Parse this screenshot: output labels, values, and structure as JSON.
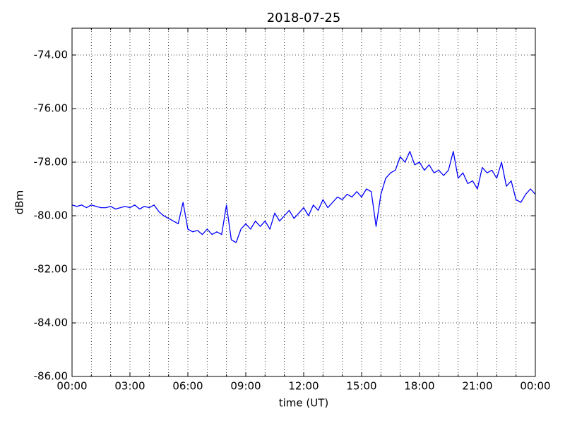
{
  "chart_data": {
    "type": "line",
    "title": "2018-07-25",
    "x_label": "time (UT)",
    "y_label": "dBm",
    "x": [
      0,
      0.25,
      0.5,
      0.75,
      1,
      1.25,
      1.5,
      1.75,
      2,
      2.25,
      2.5,
      2.75,
      3,
      3.25,
      3.5,
      3.75,
      4,
      4.25,
      4.5,
      4.75,
      5,
      5.25,
      5.5,
      5.75,
      6,
      6.25,
      6.5,
      6.75,
      7,
      7.25,
      7.5,
      7.75,
      8,
      8.25,
      8.5,
      8.75,
      9,
      9.25,
      9.5,
      9.75,
      10,
      10.25,
      10.5,
      10.75,
      11,
      11.25,
      11.5,
      11.75,
      12,
      12.25,
      12.5,
      12.75,
      13,
      13.25,
      13.5,
      13.75,
      14,
      14.25,
      14.5,
      14.75,
      15,
      15.25,
      15.5,
      15.75,
      16,
      16.25,
      16.5,
      16.75,
      17,
      17.25,
      17.5,
      17.75,
      18,
      18.25,
      18.5,
      18.75,
      19,
      19.25,
      19.5,
      19.75,
      20,
      20.25,
      20.5,
      20.75,
      21,
      21.25,
      21.5,
      21.75,
      22,
      22.25,
      22.5,
      22.75,
      23,
      23.25,
      23.5,
      23.75,
      24
    ],
    "values": [
      -79.6,
      -79.65,
      -79.6,
      -79.7,
      -79.6,
      -79.65,
      -79.7,
      -79.7,
      -79.65,
      -79.75,
      -79.7,
      -79.65,
      -79.7,
      -79.6,
      -79.75,
      -79.65,
      -79.7,
      -79.6,
      -79.85,
      -80.0,
      -80.1,
      -80.2,
      -80.3,
      -79.5,
      -80.5,
      -80.6,
      -80.55,
      -80.7,
      -80.5,
      -80.7,
      -80.6,
      -80.7,
      -79.6,
      -80.9,
      -81.0,
      -80.5,
      -80.3,
      -80.5,
      -80.2,
      -80.4,
      -80.2,
      -80.5,
      -79.9,
      -80.2,
      -80.0,
      -79.8,
      -80.1,
      -79.9,
      -79.7,
      -80.0,
      -79.6,
      -79.8,
      -79.4,
      -79.7,
      -79.5,
      -79.3,
      -79.4,
      -79.2,
      -79.3,
      -79.1,
      -79.3,
      -79.0,
      -79.1,
      -80.4,
      -79.2,
      -78.6,
      -78.4,
      -78.3,
      -77.8,
      -78.0,
      -77.6,
      -78.1,
      -78.0,
      -78.3,
      -78.1,
      -78.4,
      -78.3,
      -78.5,
      -78.3,
      -77.6,
      -78.6,
      -78.4,
      -78.8,
      -78.7,
      -79.0,
      -78.2,
      -78.4,
      -78.3,
      -78.6,
      -78.0,
      -78.9,
      -78.7,
      -79.4,
      -79.5,
      -79.2,
      -79.0,
      -79.2
    ],
    "color": "#0000ff",
    "xlim": [
      0,
      24
    ],
    "xticks": [
      {
        "value": 0,
        "label": "00:00"
      },
      {
        "value": 3,
        "label": "03:00"
      },
      {
        "value": 6,
        "label": "06:00"
      },
      {
        "value": 9,
        "label": "09:00"
      },
      {
        "value": 12,
        "label": "12:00"
      },
      {
        "value": 15,
        "label": "15:00"
      },
      {
        "value": 18,
        "label": "18:00"
      },
      {
        "value": 21,
        "label": "21:00"
      },
      {
        "value": 24,
        "label": "00:00"
      }
    ],
    "xminorticks": [
      1,
      2,
      4,
      5,
      7,
      8,
      10,
      11,
      13,
      14,
      16,
      17,
      19,
      20,
      22,
      23
    ],
    "ylim": [
      -86,
      -73
    ],
    "yticks": [
      {
        "value": -86,
        "label": "-86.00"
      },
      {
        "value": -84,
        "label": "-84.00"
      },
      {
        "value": -82,
        "label": "-82.00"
      },
      {
        "value": -80,
        "label": "-80.00"
      },
      {
        "value": -78,
        "label": "-78.00"
      },
      {
        "value": -76,
        "label": "-76.00"
      },
      {
        "value": -74,
        "label": "-74.00"
      }
    ],
    "grid": true
  }
}
